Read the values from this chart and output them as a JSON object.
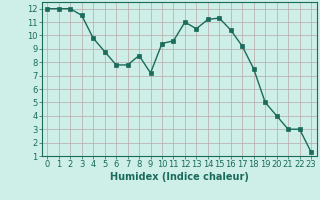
{
  "x": [
    0,
    1,
    2,
    3,
    4,
    5,
    6,
    7,
    8,
    9,
    10,
    11,
    12,
    13,
    14,
    15,
    16,
    17,
    18,
    19,
    20,
    21,
    22,
    23
  ],
  "y": [
    12,
    12,
    12,
    11.5,
    9.8,
    8.8,
    7.8,
    7.8,
    8.5,
    7.2,
    9.4,
    9.6,
    11.0,
    10.5,
    11.2,
    11.3,
    10.4,
    9.2,
    7.5,
    5.0,
    4.0,
    3.0,
    3.0,
    1.3
  ],
  "xlabel": "Humidex (Indice chaleur)",
  "xlim": [
    -0.5,
    23.5
  ],
  "ylim": [
    1,
    12.5
  ],
  "yticks": [
    1,
    2,
    3,
    4,
    5,
    6,
    7,
    8,
    9,
    10,
    11,
    12
  ],
  "xticks": [
    0,
    1,
    2,
    3,
    4,
    5,
    6,
    7,
    8,
    9,
    10,
    11,
    12,
    13,
    14,
    15,
    16,
    17,
    18,
    19,
    20,
    21,
    22,
    23
  ],
  "line_color": "#1a6b5a",
  "marker_color": "#1a6b5a",
  "bg_color": "#ceeee8",
  "grid_color": "#b8a8a8",
  "xlabel_color": "#1a6b5a",
  "xlabel_fontsize": 7,
  "tick_fontsize": 6,
  "linewidth": 1.0,
  "markersize": 2.2
}
